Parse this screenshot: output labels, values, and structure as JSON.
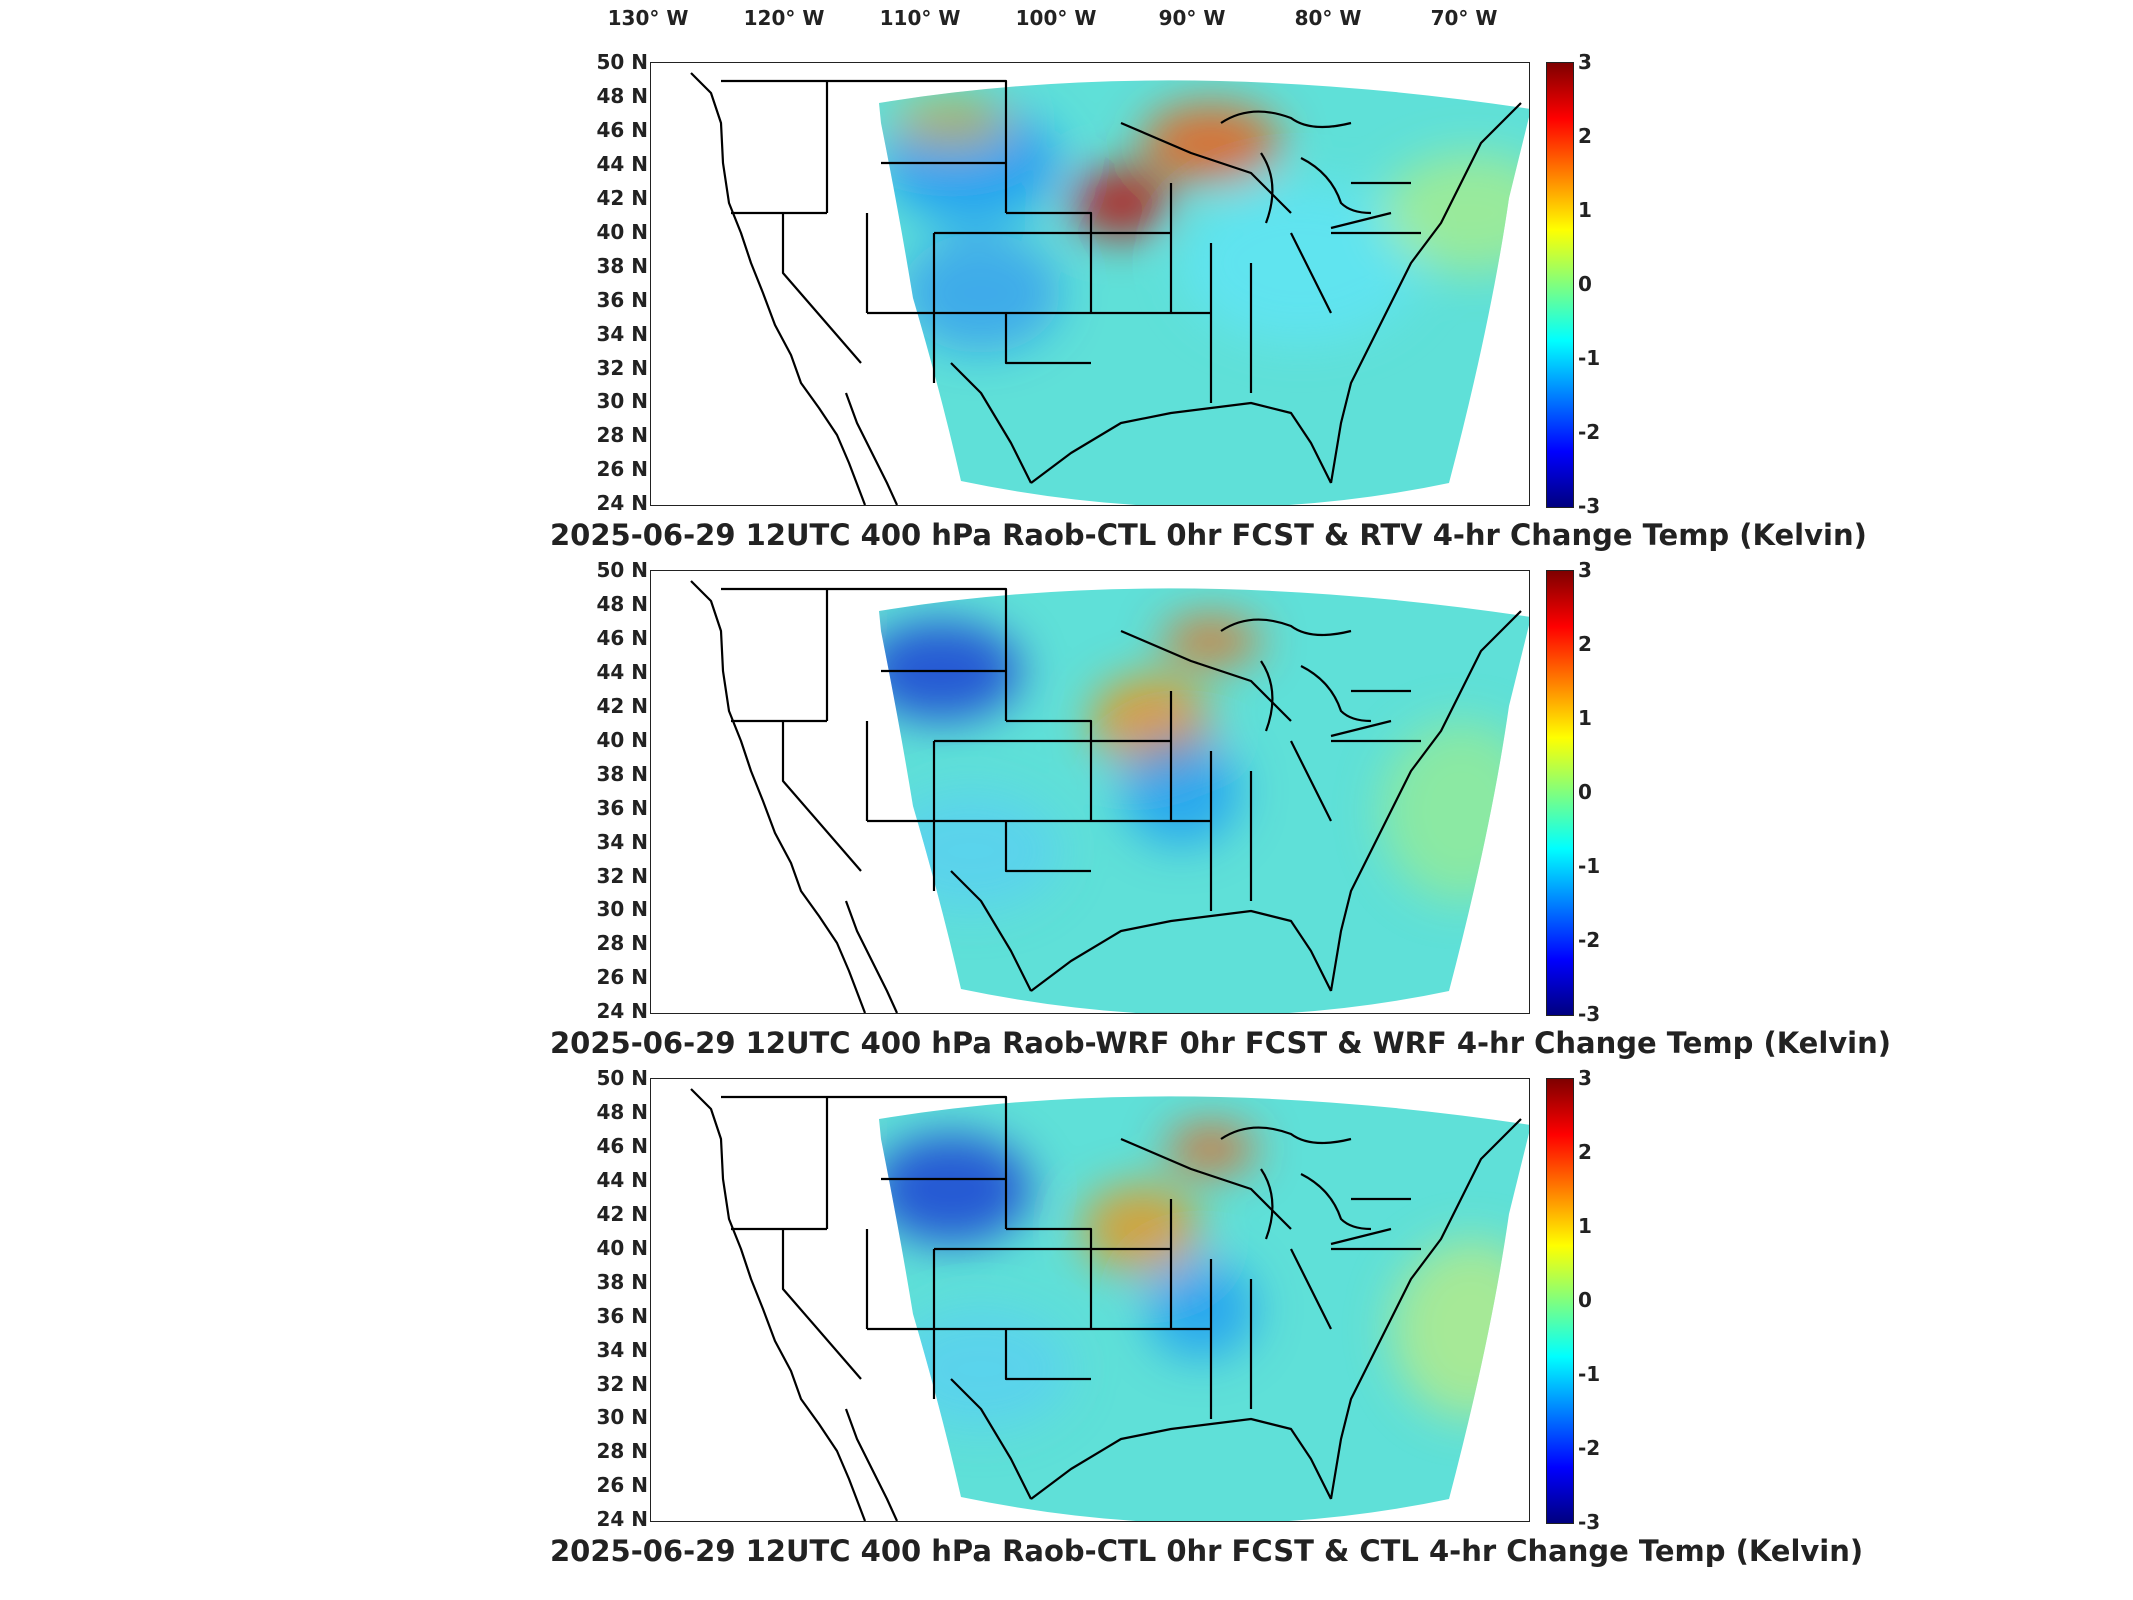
{
  "longitude_labels": [
    "130° W",
    "120° W",
    "110° W",
    "100° W",
    "90° W",
    "80° W",
    "70° W"
  ],
  "latitude_labels": [
    "50 N",
    "48 N",
    "46 N",
    "44 N",
    "42 N",
    "40 N",
    "38 N",
    "36 N",
    "34 N",
    "32 N",
    "30 N",
    "28 N",
    "26 N",
    "24 N"
  ],
  "colorbar": {
    "ticks": [
      "3",
      "2",
      "1",
      "0",
      "-1",
      "-2",
      "-3"
    ],
    "range": [
      -3,
      3
    ],
    "colormap": "jet",
    "colors": [
      "#00007f",
      "#0000ff",
      "#007fff",
      "#00ffff",
      "#7fff7f",
      "#ffff00",
      "#ff7f00",
      "#ff0000",
      "#7f0000"
    ]
  },
  "panels": [
    {
      "title": "2025-06-29 12UTC 400 hPa Raob-CTL 0hr FCST & RTV 4-hr Change Temp (Kelvin)"
    },
    {
      "title": "2025-06-29 12UTC 400 hPa Raob-WRF 0hr FCST & WRF 4-hr Change Temp (Kelvin)"
    },
    {
      "title": "2025-06-29 12UTC 400 hPa Raob-CTL 0hr FCST & CTL 4-hr Change Temp (Kelvin)"
    }
  ]
}
